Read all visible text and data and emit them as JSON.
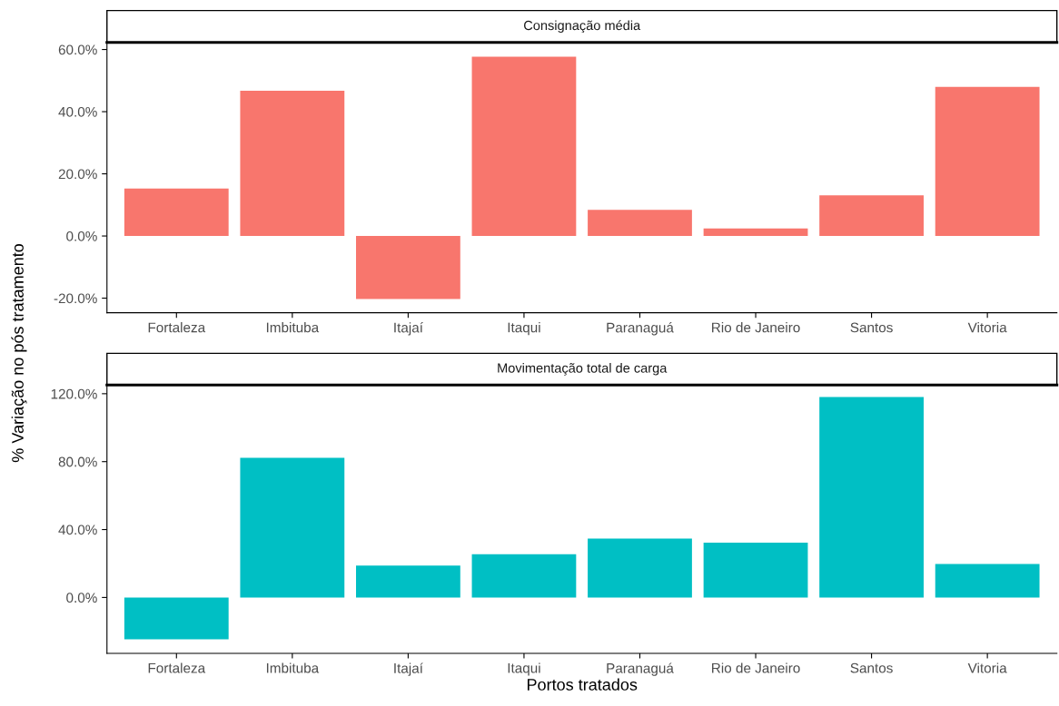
{
  "chart_data": [
    {
      "type": "bar",
      "title": "Consignação média",
      "ylabel": "% Variação no pós tratamento",
      "categories": [
        "Fortaleza",
        "Imbituba",
        "Itajaí",
        "Itaqui",
        "Paranaguá",
        "Rio de Janeiro",
        "Santos",
        "Vitoria"
      ],
      "series": [
        {
          "color": "#f8766d",
          "values": [
            15.3,
            46.7,
            -20.3,
            57.7,
            8.4,
            2.4,
            13.1,
            48.0
          ]
        }
      ],
      "ylim": [
        -24.7,
        62.3
      ],
      "yticks": [
        {
          "value": -20,
          "label": "-20.0%"
        },
        {
          "value": 0,
          "label": "0.0%"
        },
        {
          "value": 20,
          "label": "20.0%"
        },
        {
          "value": 40,
          "label": "40.0%"
        },
        {
          "value": 60,
          "label": "60.0%"
        }
      ]
    },
    {
      "type": "bar",
      "title": "Movimentação total de carga",
      "xlabel": "Portos tratados",
      "categories": [
        "Fortaleza",
        "Imbituba",
        "Itajaí",
        "Itaqui",
        "Paranaguá",
        "Rio de Janeiro",
        "Santos",
        "Vitoria"
      ],
      "series": [
        {
          "color": "#00bfc4",
          "values": [
            -24.7,
            82.2,
            18.8,
            25.5,
            34.7,
            32.3,
            118.1,
            19.7
          ]
        }
      ],
      "ylim": [
        -32.9,
        125.1
      ],
      "yticks": [
        {
          "value": 0,
          "label": "0.0%"
        },
        {
          "value": 40,
          "label": "40.0%"
        },
        {
          "value": 80,
          "label": "80.0%"
        },
        {
          "value": 120,
          "label": "120.0%"
        }
      ]
    }
  ]
}
